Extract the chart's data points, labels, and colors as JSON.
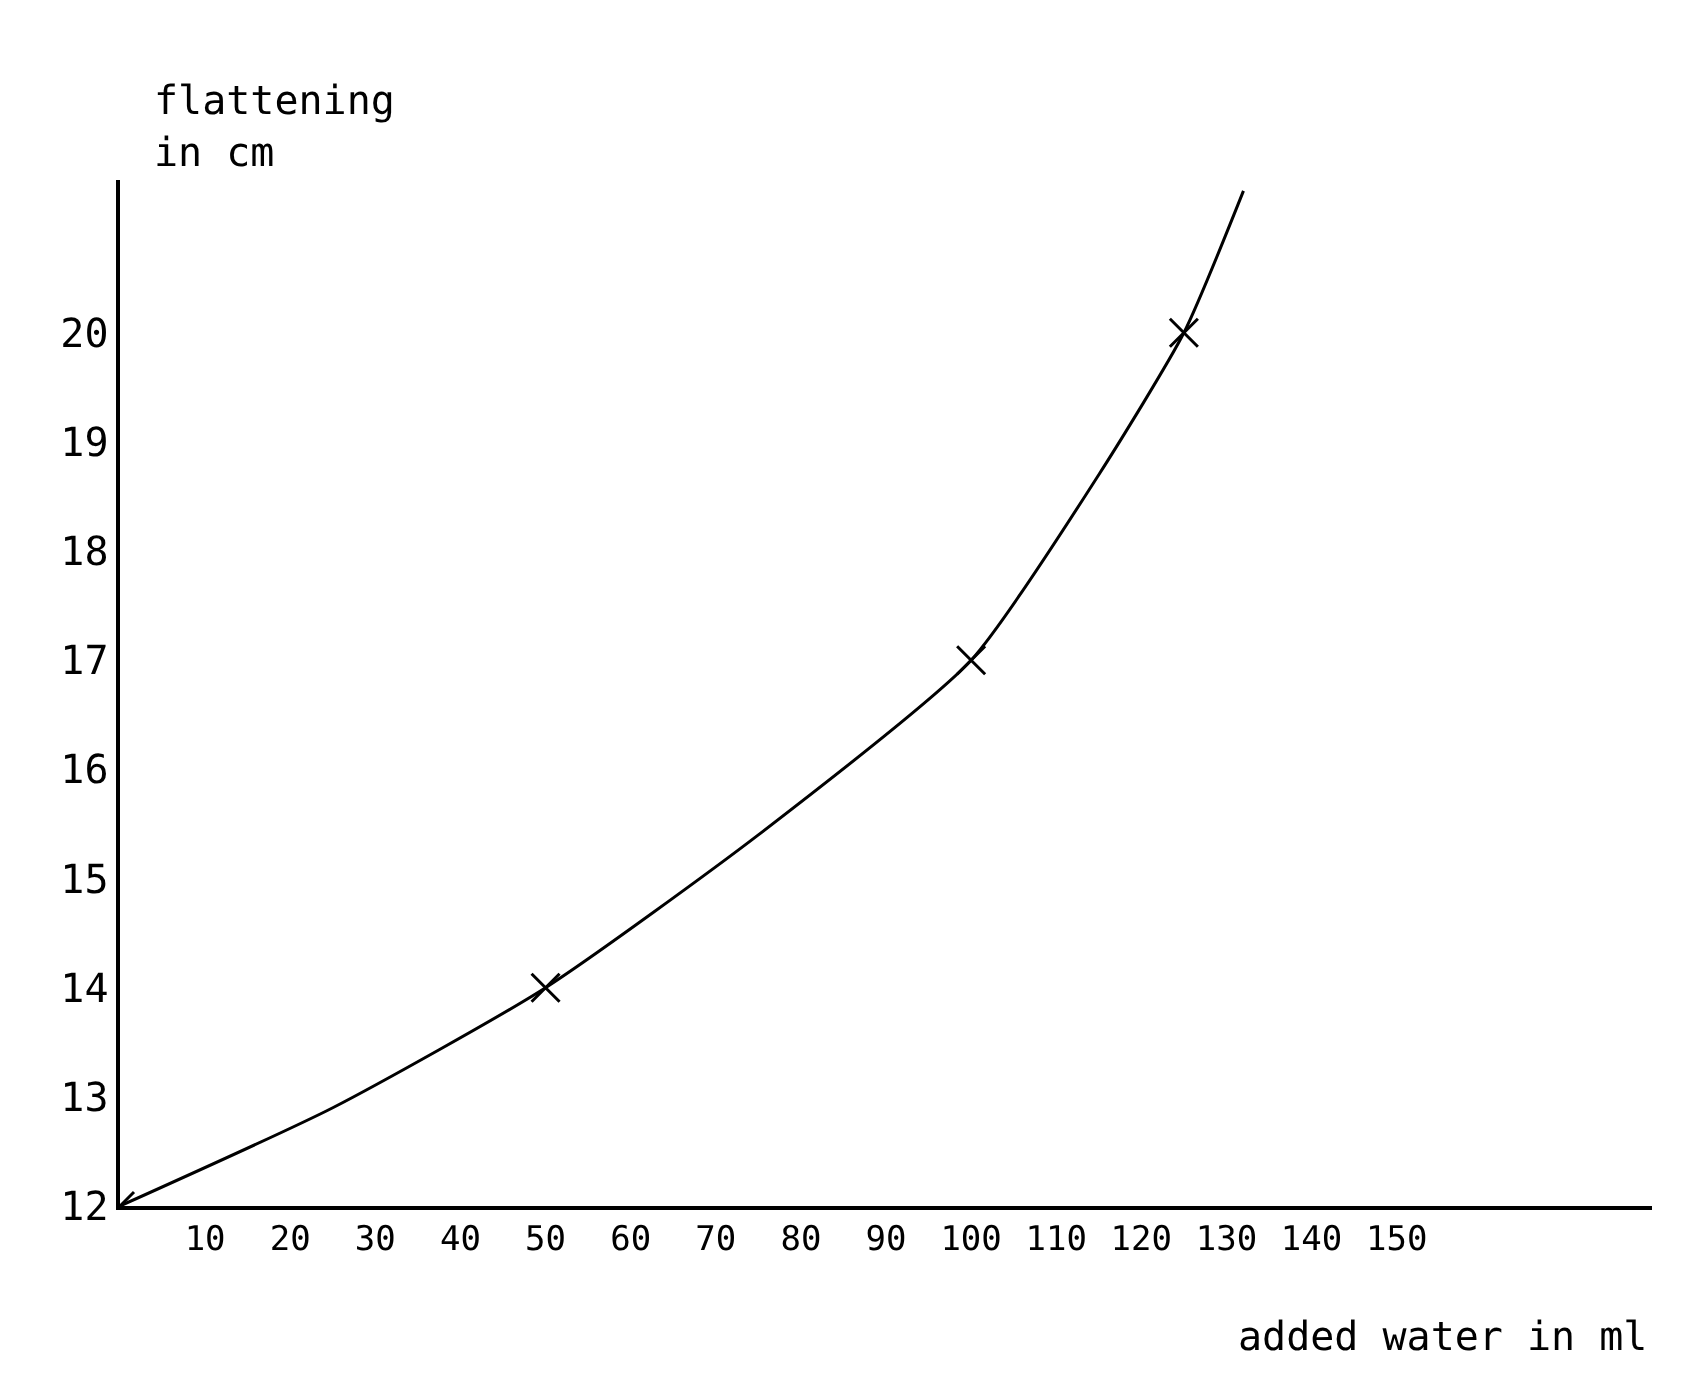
{
  "chart_data": {
    "type": "line",
    "xlabel": "added water in ml",
    "ylabel": "flattening\nin cm",
    "xlim": [
      0,
      180
    ],
    "ylim": [
      12,
      21.4
    ],
    "xticks": [
      10,
      20,
      30,
      40,
      50,
      60,
      70,
      80,
      90,
      100,
      110,
      120,
      130,
      140,
      150
    ],
    "yticks": [
      12,
      13,
      14,
      15,
      16,
      17,
      18,
      19,
      20
    ],
    "series": [
      {
        "color": "#000000",
        "marker": "none",
        "x": [
          0,
          25,
          50,
          75,
          100,
          115,
          125,
          132
        ],
        "values": [
          12,
          12.9,
          14,
          15.4,
          17,
          18.7,
          20,
          21.3
        ]
      },
      {
        "type": "scatter",
        "color": "#000000",
        "marker": "cross",
        "x": [
          0,
          50,
          100,
          125
        ],
        "values": [
          12,
          14,
          17,
          20
        ]
      }
    ]
  }
}
